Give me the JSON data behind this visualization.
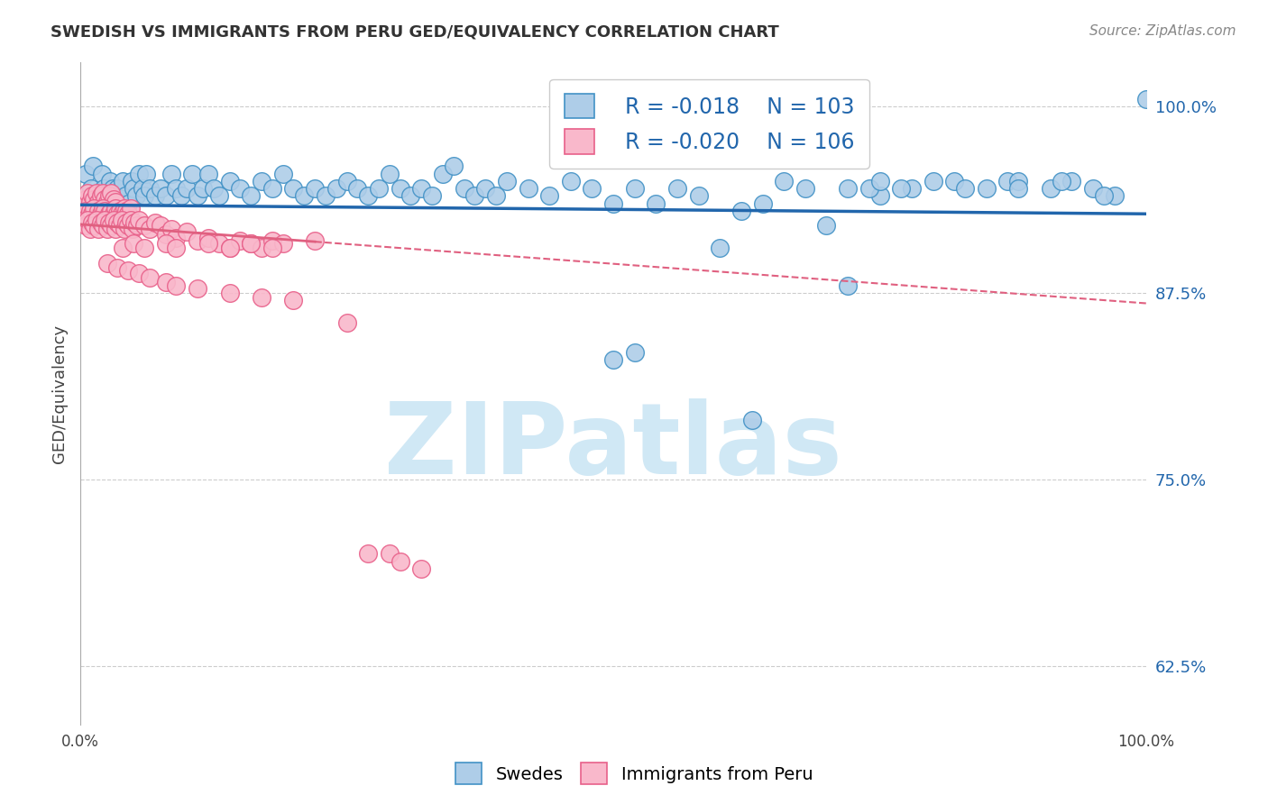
{
  "title": "SWEDISH VS IMMIGRANTS FROM PERU GED/EQUIVALENCY CORRELATION CHART",
  "source": "Source: ZipAtlas.com",
  "ylabel": "GED/Equivalency",
  "xlim": [
    0.0,
    1.0
  ],
  "ylim": [
    0.585,
    1.03
  ],
  "yticks": [
    0.625,
    0.75,
    0.875,
    1.0
  ],
  "ytick_labels": [
    "62.5%",
    "75.0%",
    "87.5%",
    "100.0%"
  ],
  "xticks": [
    0.0,
    0.1,
    0.2,
    0.3,
    0.4,
    0.5,
    0.6,
    0.7,
    0.8,
    0.9,
    1.0
  ],
  "xtick_labels": [
    "0.0%",
    "",
    "",
    "",
    "",
    "",
    "",
    "",
    "",
    "",
    "100.0%"
  ],
  "legend_blue_r": "R = -0.018",
  "legend_blue_n": "N = 103",
  "legend_pink_r": "R = -0.020",
  "legend_pink_n": "N = 106",
  "blue_color": "#aecde8",
  "pink_color": "#f9b8cb",
  "blue_edge": "#4292c6",
  "pink_edge": "#e8608a",
  "trend_blue_color": "#2166ac",
  "trend_pink_color": "#e06080",
  "watermark_color": "#d0e8f5",
  "background_color": "#ffffff",
  "grid_color": "#cccccc",
  "blue_trend": [
    0.0,
    1.0,
    0.934,
    0.928
  ],
  "pink_trend": [
    0.0,
    1.0,
    0.921,
    0.868
  ],
  "blue_x": [
    0.005,
    0.01,
    0.012,
    0.015,
    0.018,
    0.02,
    0.022,
    0.025,
    0.028,
    0.03,
    0.032,
    0.035,
    0.038,
    0.04,
    0.042,
    0.045,
    0.048,
    0.05,
    0.052,
    0.055,
    0.058,
    0.06,
    0.062,
    0.065,
    0.07,
    0.075,
    0.08,
    0.085,
    0.09,
    0.095,
    0.1,
    0.105,
    0.11,
    0.115,
    0.12,
    0.125,
    0.13,
    0.14,
    0.15,
    0.16,
    0.17,
    0.18,
    0.19,
    0.2,
    0.21,
    0.22,
    0.23,
    0.24,
    0.25,
    0.26,
    0.27,
    0.28,
    0.29,
    0.3,
    0.31,
    0.32,
    0.33,
    0.34,
    0.35,
    0.36,
    0.37,
    0.38,
    0.39,
    0.4,
    0.42,
    0.44,
    0.46,
    0.48,
    0.5,
    0.52,
    0.54,
    0.56,
    0.58,
    0.6,
    0.62,
    0.64,
    0.66,
    0.68,
    0.7,
    0.72,
    0.75,
    0.78,
    0.82,
    0.85,
    0.87,
    0.88,
    0.91,
    0.93,
    0.95,
    0.97,
    0.5,
    0.52,
    0.63,
    0.72,
    0.74,
    0.75,
    0.77,
    0.8,
    0.83,
    0.88,
    0.92,
    0.96,
    1.0
  ],
  "blue_y": [
    0.955,
    0.945,
    0.96,
    0.94,
    0.935,
    0.955,
    0.945,
    0.94,
    0.95,
    0.945,
    0.94,
    0.945,
    0.935,
    0.95,
    0.94,
    0.935,
    0.95,
    0.945,
    0.94,
    0.955,
    0.945,
    0.94,
    0.955,
    0.945,
    0.94,
    0.945,
    0.94,
    0.955,
    0.945,
    0.94,
    0.945,
    0.955,
    0.94,
    0.945,
    0.955,
    0.945,
    0.94,
    0.95,
    0.945,
    0.94,
    0.95,
    0.945,
    0.955,
    0.945,
    0.94,
    0.945,
    0.94,
    0.945,
    0.95,
    0.945,
    0.94,
    0.945,
    0.955,
    0.945,
    0.94,
    0.945,
    0.94,
    0.955,
    0.96,
    0.945,
    0.94,
    0.945,
    0.94,
    0.95,
    0.945,
    0.94,
    0.95,
    0.945,
    0.935,
    0.945,
    0.935,
    0.945,
    0.94,
    0.905,
    0.93,
    0.935,
    0.95,
    0.945,
    0.92,
    0.945,
    0.94,
    0.945,
    0.95,
    0.945,
    0.95,
    0.95,
    0.945,
    0.95,
    0.945,
    0.94,
    0.83,
    0.835,
    0.79,
    0.88,
    0.945,
    0.95,
    0.945,
    0.95,
    0.945,
    0.945,
    0.95,
    0.94,
    1.005
  ],
  "pink_x": [
    0.005,
    0.007,
    0.009,
    0.011,
    0.013,
    0.015,
    0.017,
    0.019,
    0.021,
    0.023,
    0.025,
    0.027,
    0.029,
    0.031,
    0.033,
    0.005,
    0.007,
    0.009,
    0.011,
    0.013,
    0.015,
    0.017,
    0.019,
    0.021,
    0.023,
    0.025,
    0.027,
    0.029,
    0.031,
    0.033,
    0.035,
    0.037,
    0.039,
    0.041,
    0.043,
    0.045,
    0.047,
    0.005,
    0.007,
    0.009,
    0.011,
    0.013,
    0.015,
    0.017,
    0.019,
    0.021,
    0.023,
    0.025,
    0.027,
    0.029,
    0.031,
    0.033,
    0.035,
    0.037,
    0.039,
    0.041,
    0.043,
    0.045,
    0.047,
    0.049,
    0.051,
    0.053,
    0.055,
    0.06,
    0.065,
    0.07,
    0.075,
    0.08,
    0.085,
    0.09,
    0.1,
    0.11,
    0.12,
    0.13,
    0.14,
    0.15,
    0.16,
    0.17,
    0.18,
    0.19,
    0.22,
    0.04,
    0.05,
    0.06,
    0.08,
    0.09,
    0.12,
    0.14,
    0.16,
    0.18,
    0.025,
    0.035,
    0.045,
    0.055,
    0.065,
    0.08,
    0.09,
    0.11,
    0.14,
    0.17,
    0.2,
    0.25,
    0.27,
    0.29,
    0.3,
    0.32
  ],
  "pink_y": [
    0.938,
    0.942,
    0.936,
    0.94,
    0.938,
    0.942,
    0.936,
    0.94,
    0.942,
    0.938,
    0.936,
    0.94,
    0.942,
    0.938,
    0.936,
    0.93,
    0.926,
    0.93,
    0.928,
    0.932,
    0.926,
    0.93,
    0.928,
    0.932,
    0.93,
    0.926,
    0.928,
    0.93,
    0.928,
    0.932,
    0.928,
    0.93,
    0.928,
    0.932,
    0.93,
    0.928,
    0.932,
    0.92,
    0.924,
    0.918,
    0.922,
    0.92,
    0.924,
    0.918,
    0.922,
    0.92,
    0.924,
    0.918,
    0.922,
    0.92,
    0.924,
    0.918,
    0.922,
    0.92,
    0.924,
    0.918,
    0.922,
    0.92,
    0.924,
    0.918,
    0.922,
    0.92,
    0.924,
    0.92,
    0.918,
    0.922,
    0.92,
    0.914,
    0.918,
    0.912,
    0.916,
    0.91,
    0.912,
    0.908,
    0.905,
    0.91,
    0.908,
    0.905,
    0.91,
    0.908,
    0.91,
    0.905,
    0.908,
    0.905,
    0.908,
    0.905,
    0.908,
    0.905,
    0.908,
    0.905,
    0.895,
    0.892,
    0.89,
    0.888,
    0.885,
    0.882,
    0.88,
    0.878,
    0.875,
    0.872,
    0.87,
    0.855,
    0.7,
    0.7,
    0.695,
    0.69
  ]
}
